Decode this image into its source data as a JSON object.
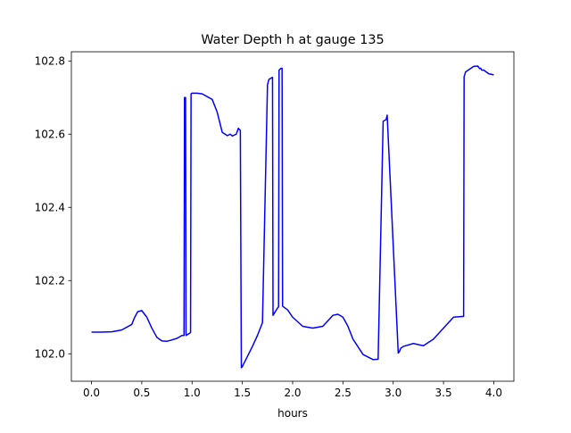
{
  "chart_data": {
    "type": "line",
    "title": "Water Depth h at gauge 135",
    "xlabel": "hours",
    "ylabel": "",
    "xlim": [
      -0.2,
      4.2
    ],
    "ylim": [
      101.925,
      102.825
    ],
    "xticks": [
      0.0,
      0.5,
      1.0,
      1.5,
      2.0,
      2.5,
      3.0,
      3.5,
      4.0
    ],
    "xtick_labels": [
      "0.0",
      "0.5",
      "1.0",
      "1.5",
      "2.0",
      "2.5",
      "3.0",
      "3.5",
      "4.0"
    ],
    "yticks": [
      102.0,
      102.2,
      102.4,
      102.6,
      102.8
    ],
    "ytick_labels": [
      "102.0",
      "102.2",
      "102.4",
      "102.6",
      "102.8"
    ],
    "grid": false,
    "series": [
      {
        "color": "#0000ff",
        "x": [
          0.0,
          0.1,
          0.2,
          0.3,
          0.4,
          0.43,
          0.46,
          0.5,
          0.55,
          0.6,
          0.65,
          0.7,
          0.75,
          0.8,
          0.85,
          0.9,
          0.92,
          0.925,
          0.935,
          0.94,
          0.97,
          0.985,
          0.99,
          1.0,
          1.05,
          1.1,
          1.2,
          1.25,
          1.3,
          1.35,
          1.38,
          1.4,
          1.44,
          1.46,
          1.48,
          1.49,
          1.5,
          1.6,
          1.65,
          1.7,
          1.75,
          1.76,
          1.765,
          1.8,
          1.805,
          1.85,
          1.86,
          1.865,
          1.885,
          1.895,
          1.9,
          1.95,
          2.0,
          2.1,
          2.2,
          2.3,
          2.4,
          2.45,
          2.5,
          2.55,
          2.6,
          2.7,
          2.8,
          2.85,
          2.9,
          2.93,
          2.94,
          3.05,
          3.06,
          3.075,
          3.1,
          3.2,
          3.3,
          3.4,
          3.5,
          3.6,
          3.7,
          3.705,
          3.72,
          3.8,
          3.84,
          3.86,
          3.87,
          3.88,
          3.9,
          3.95,
          4.0
        ],
        "y": [
          102.059,
          102.059,
          102.06,
          102.065,
          102.08,
          102.1,
          102.115,
          102.118,
          102.1,
          102.07,
          102.045,
          102.035,
          102.034,
          102.038,
          102.042,
          102.05,
          102.05,
          102.7,
          102.7,
          102.05,
          102.055,
          102.058,
          102.71,
          102.712,
          102.712,
          102.71,
          102.695,
          102.66,
          102.605,
          102.596,
          102.6,
          102.595,
          102.6,
          102.616,
          102.61,
          101.962,
          101.965,
          102.02,
          102.05,
          102.085,
          102.735,
          102.745,
          102.75,
          102.755,
          102.105,
          102.125,
          102.128,
          102.775,
          102.78,
          102.78,
          102.13,
          102.12,
          102.1,
          102.075,
          102.07,
          102.075,
          102.105,
          102.108,
          102.1,
          102.075,
          102.04,
          101.998,
          101.984,
          101.985,
          102.635,
          102.64,
          102.652,
          102.002,
          102.005,
          102.015,
          102.02,
          102.028,
          102.022,
          102.04,
          102.07,
          102.1,
          102.102,
          102.757,
          102.77,
          102.785,
          102.786,
          102.779,
          102.78,
          102.775,
          102.775,
          102.765,
          102.762
        ]
      }
    ]
  }
}
